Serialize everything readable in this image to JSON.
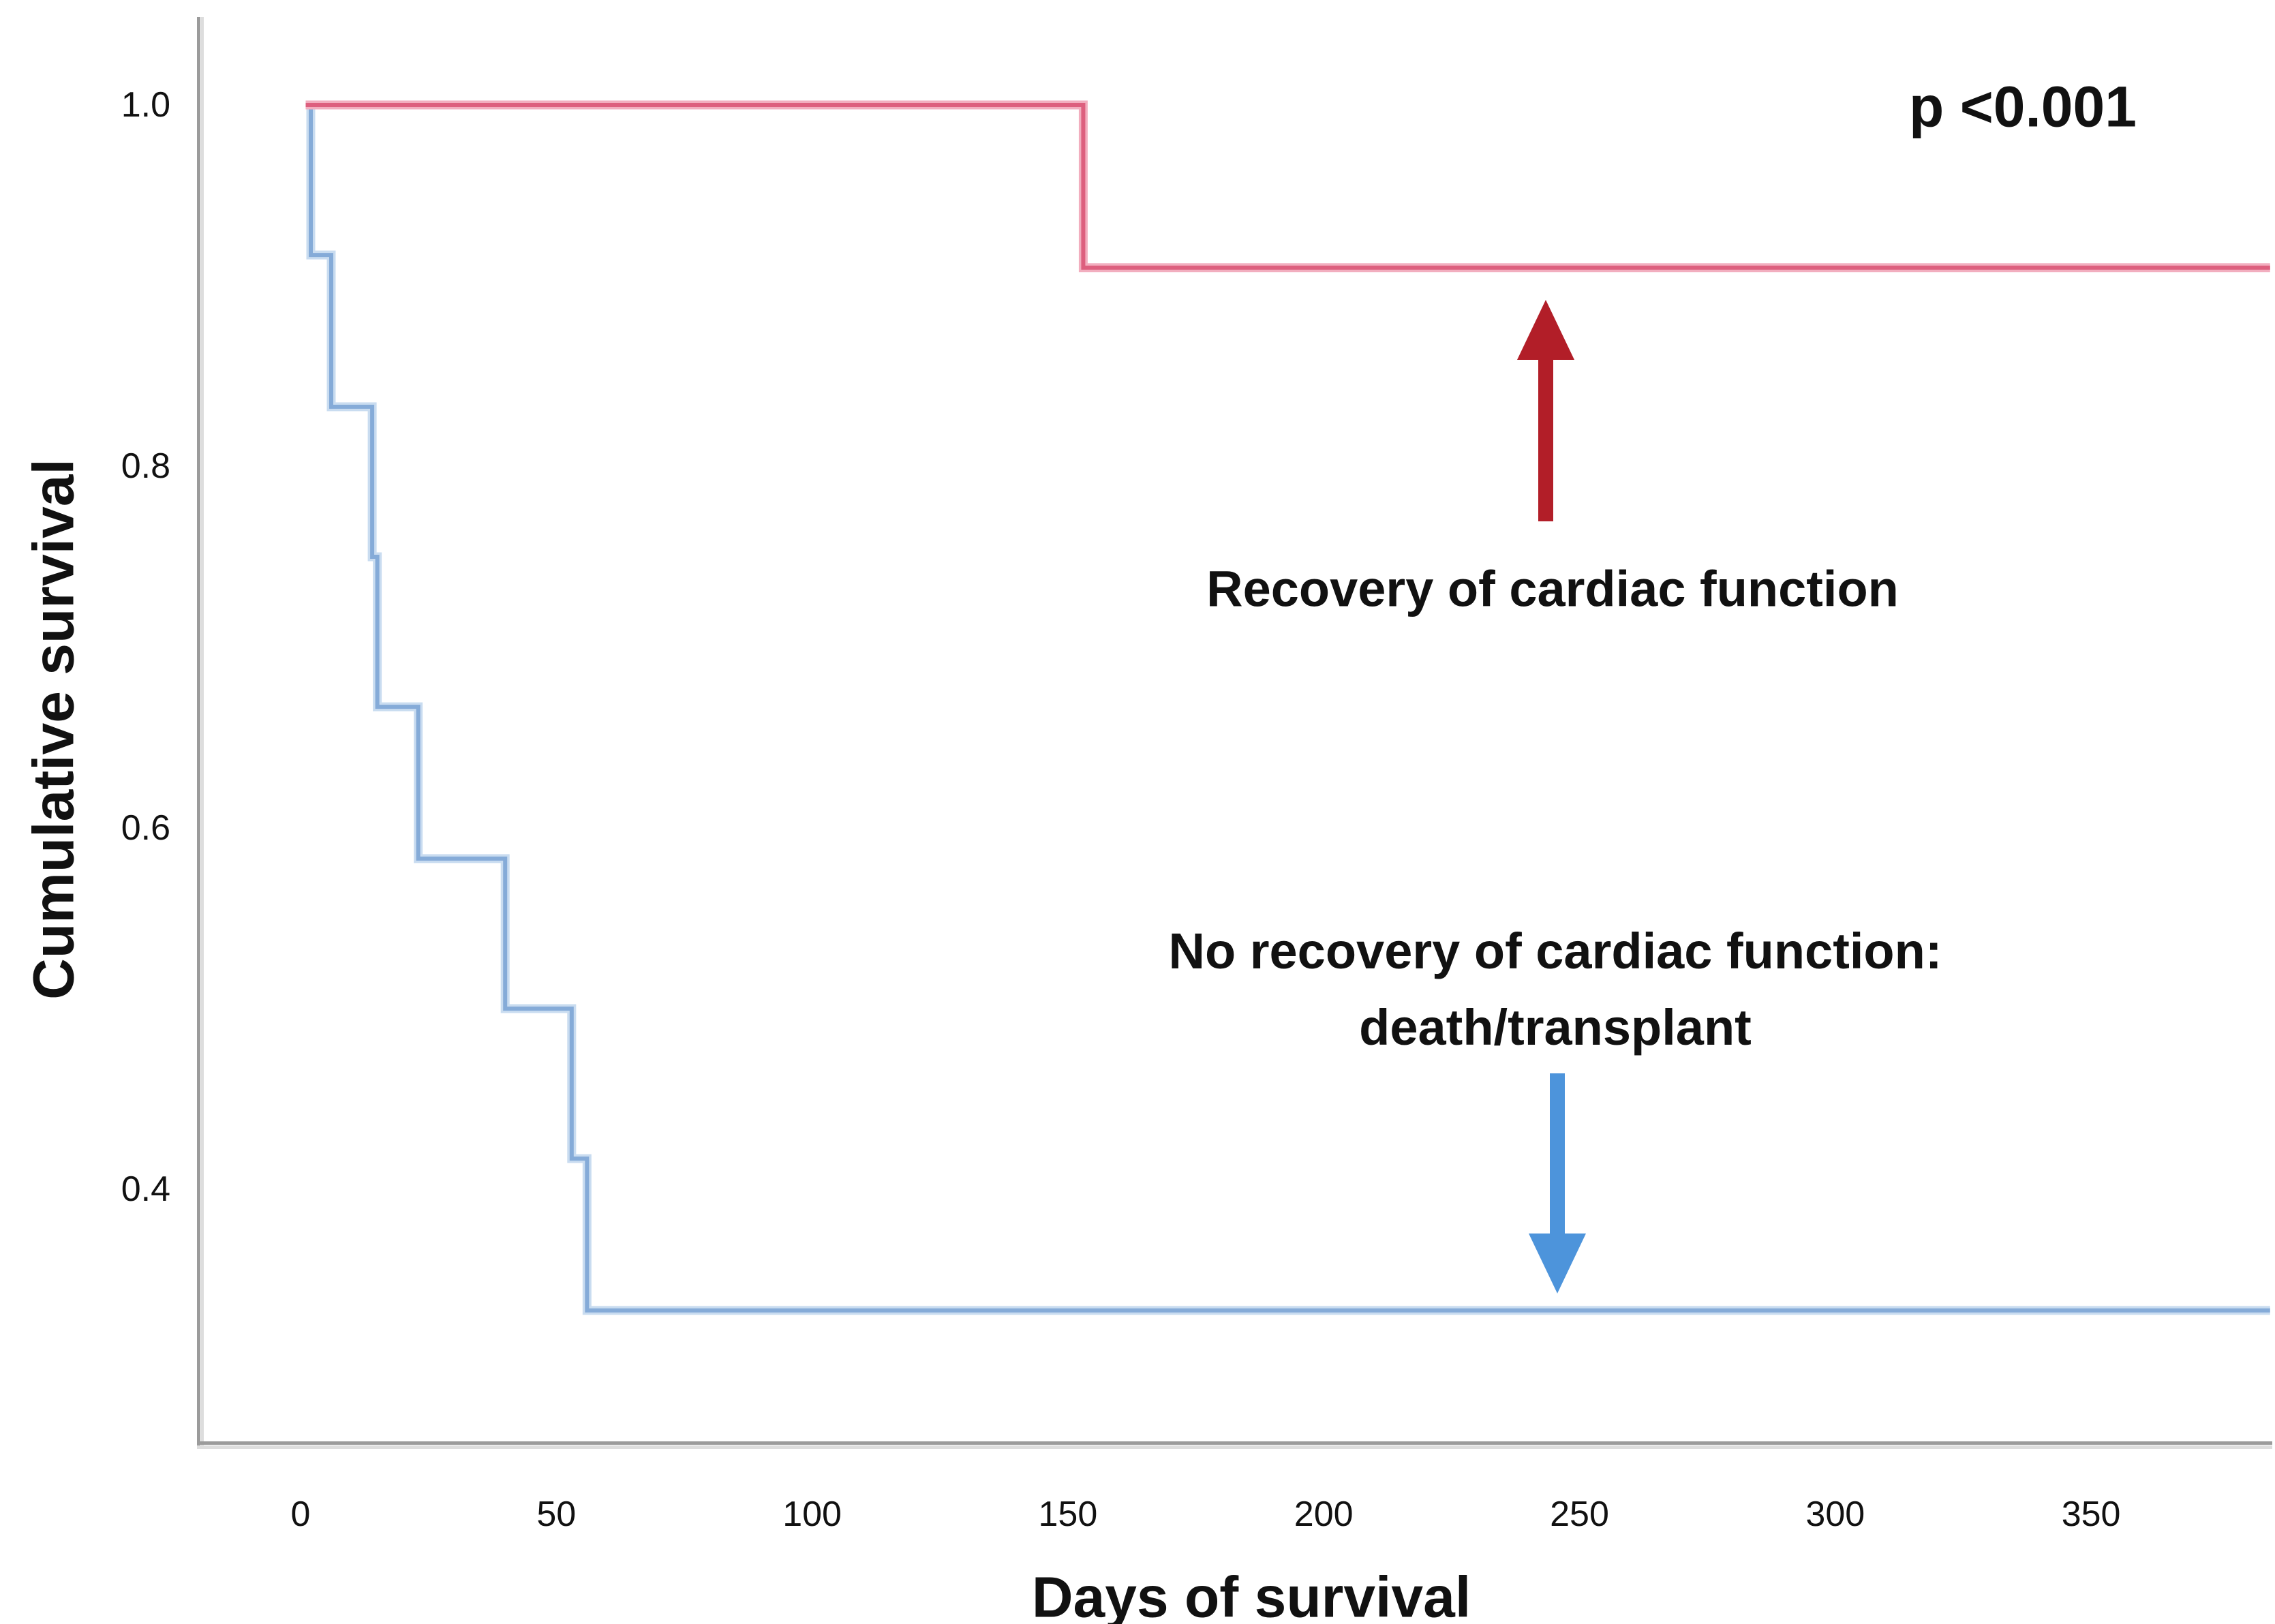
{
  "figure": {
    "background": "#ffffff",
    "p_value": "p <0.001",
    "annotations": {
      "recovery": {
        "label": "Recovery of cardiac function",
        "arrow": {
          "direction": "up",
          "color": "#b21e28"
        }
      },
      "no_recovery": {
        "line1": "No recovery of cardiac function:",
        "line2": "death/transplant",
        "arrow": {
          "direction": "down",
          "color": "#4d94db"
        }
      }
    }
  },
  "chart_data": {
    "type": "line",
    "variant": "kaplan_meier_step",
    "title": "",
    "xlabel": "Days of survival",
    "ylabel": "Cumulative survival",
    "x_ticks": [
      "0",
      "50",
      "100",
      "150",
      "200",
      "250",
      "300",
      "350"
    ],
    "y_ticks": [
      "1.0",
      "0.8",
      "0.6",
      "0.4"
    ],
    "xlim": [
      -20,
      386
    ],
    "ylim": [
      0.26,
      1.05
    ],
    "grid": false,
    "legend_position": "none (series labeled by on-plot annotations with arrows)",
    "axis_color": "#9b9b9b",
    "text_color": "#111111",
    "p_value": "p <0.001",
    "series": [
      {
        "name": "Recovery of cardiac function",
        "color": "#dd5f7e",
        "halo": "#f2aebf",
        "points": [
          [
            1,
            1.0
          ],
          [
            153,
            0.91
          ]
        ],
        "end_day": 385
      },
      {
        "name": "No recovery of cardiac function: death/transplant",
        "color": "#85abd8",
        "halo": "#c9dcf0",
        "points": [
          [
            1,
            1.0
          ],
          [
            2,
            0.917
          ],
          [
            6,
            0.833
          ],
          [
            14,
            0.75
          ],
          [
            15,
            0.667
          ],
          [
            23,
            0.583
          ],
          [
            40,
            0.5
          ],
          [
            53,
            0.417
          ],
          [
            56,
            0.333
          ]
        ],
        "end_day": 385
      }
    ]
  }
}
